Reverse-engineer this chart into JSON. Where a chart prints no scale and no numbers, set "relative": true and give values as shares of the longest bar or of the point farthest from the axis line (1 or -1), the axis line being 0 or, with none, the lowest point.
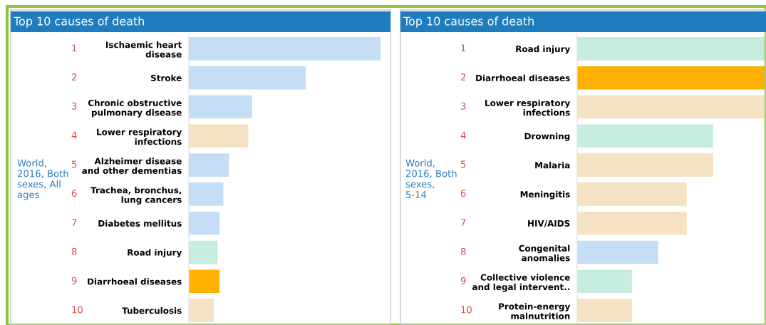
{
  "chart_data": [
    {
      "type": "bar",
      "orientation": "horizontal",
      "relative": true,
      "title": "Top 10 causes of death",
      "categories": [
        "Ischaemic heart\ndisease",
        "Stroke",
        "Chronic obstructive\npulmonary disease",
        "Lower respiratory\ninfections",
        "Alzheimer disease\nand other dementias",
        "Trachea, bronchus,\nlung cancers",
        "Diabetes mellitus",
        "Road injury",
        "Diarrhoeal diseases",
        "Tuberculosis"
      ],
      "values": [
        1,
        0.61,
        0.33,
        0.31,
        0.21,
        0.18,
        0.16,
        0.15,
        0.16,
        0.13
      ],
      "colors": [
        "#c5def5",
        "#c5def5",
        "#c5def5",
        "#f5e3c4",
        "#c5def5",
        "#c5def5",
        "#c5def5",
        "#c6ecdf",
        "#ffb000",
        "#f5e3c4"
      ],
      "annotations": [
        "World,\n2016, Both\nsexes, All\nages",
        "1",
        "2",
        "3",
        "4",
        "5",
        "6",
        "7",
        "8",
        "9",
        "10"
      ]
    },
    {
      "type": "bar",
      "orientation": "horizontal",
      "relative": true,
      "title": "Top 10 causes of death",
      "categories": [
        "Road injury",
        "Diarrhoeal diseases",
        "Lower respiratory\ninfections",
        "Drowning",
        "Malaria",
        "Meningitis",
        "HIV/AIDS",
        "Congenital\nanomalies",
        "Collective violence\nand legal intervent..",
        "Protein-energy\nmalnutrition"
      ],
      "values": [
        1,
        1,
        1,
        0.72,
        0.72,
        0.58,
        0.58,
        0.43,
        0.29,
        0.29
      ],
      "colors": [
        "#c6ecdf",
        "#ffb000",
        "#f5e3c4",
        "#c6ecdf",
        "#f5e3c4",
        "#f5e3c4",
        "#f5e3c4",
        "#c5def5",
        "#c6ecdf",
        "#f5e3c4"
      ],
      "annotations": [
        "World,\n2016, Both\nsexes,\n5-14",
        "1",
        "2",
        "3",
        "4",
        "5",
        "6",
        "7",
        "8",
        "9",
        "10"
      ]
    }
  ]
}
